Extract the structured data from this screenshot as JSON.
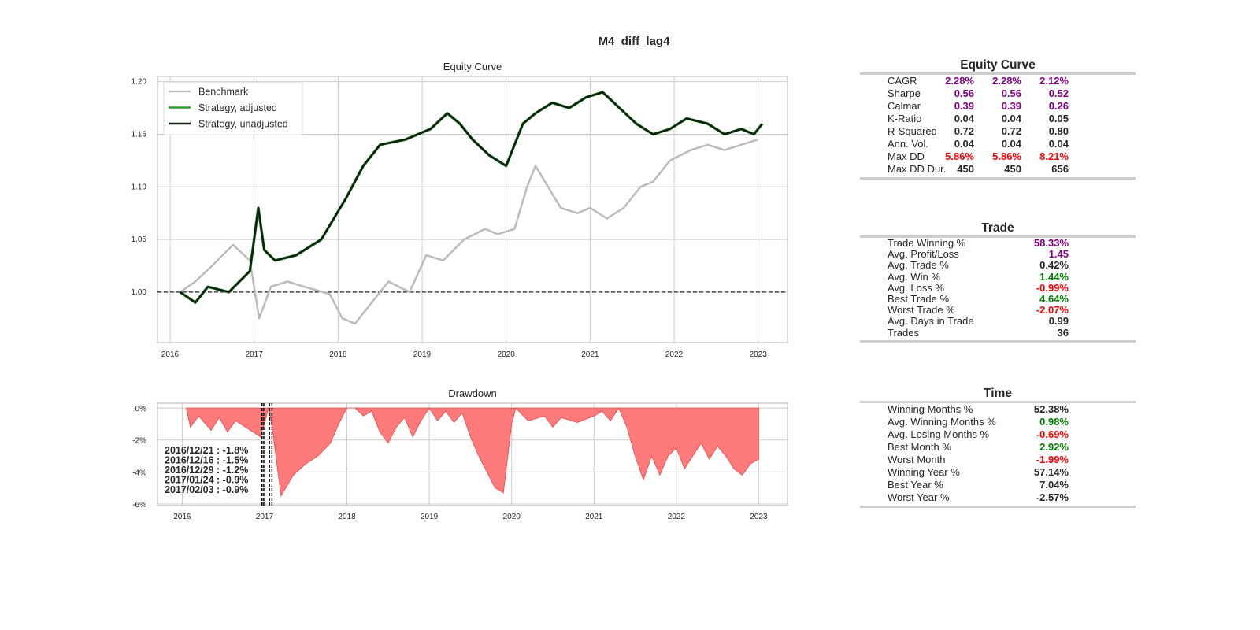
{
  "figure_title": "M4_diff_lag4",
  "colors": {
    "benchmark": "#bbbbbb",
    "strategy_adjusted": "#2ca02c",
    "strategy_unadjusted": "#0f1f0f",
    "drawdown_fill": "#ff7a7a",
    "drawdown_line": "#ee4444",
    "positive": "#008000",
    "negative": "#ff0000",
    "highlight": "#800080",
    "neutral": "#262626"
  },
  "chart_data": [
    {
      "type": "line",
      "title": "Equity Curve",
      "xlabel": "",
      "ylabel": "",
      "x_ticks": [
        "2016",
        "2017",
        "2018",
        "2019",
        "2020",
        "2021",
        "2022",
        "2023"
      ],
      "y_ticks": [
        "1.00",
        "1.05",
        "1.10",
        "1.15",
        "1.20"
      ],
      "xlim": [
        2015.85,
        2023.35
      ],
      "ylim": [
        0.952,
        1.205
      ],
      "grid": true,
      "legend_position": "top-left",
      "reference_line": 1.0,
      "series": [
        {
          "name": "Benchmark",
          "x": [
            2016.12,
            2016.3,
            2016.5,
            2016.75,
            2016.95,
            2017.06,
            2017.2,
            2017.4,
            2017.6,
            2017.9,
            2018.05,
            2018.2,
            2018.4,
            2018.6,
            2018.85,
            2019.05,
            2019.25,
            2019.5,
            2019.75,
            2019.9,
            2020.1,
            2020.25,
            2020.35,
            2020.5,
            2020.65,
            2020.85,
            2021.0,
            2021.2,
            2021.4,
            2021.6,
            2021.75,
            2021.95,
            2022.2,
            2022.4,
            2022.6,
            2022.8,
            2023.0
          ],
          "y": [
            1.0,
            1.01,
            1.025,
            1.045,
            1.03,
            0.975,
            1.005,
            1.01,
            1.005,
            0.998,
            0.975,
            0.97,
            0.99,
            1.01,
            1.0,
            1.035,
            1.03,
            1.05,
            1.06,
            1.055,
            1.06,
            1.1,
            1.12,
            1.1,
            1.08,
            1.075,
            1.08,
            1.07,
            1.08,
            1.1,
            1.105,
            1.125,
            1.135,
            1.14,
            1.135,
            1.14,
            1.145
          ]
        },
        {
          "name": "Strategy, adjusted",
          "x": [
            2016.12,
            2016.3,
            2016.45,
            2016.7,
            2016.95,
            2017.05,
            2017.12,
            2017.25,
            2017.5,
            2017.8,
            2018.1,
            2018.3,
            2018.5,
            2018.8,
            2019.1,
            2019.3,
            2019.45,
            2019.6,
            2019.8,
            2020.0,
            2020.2,
            2020.35,
            2020.55,
            2020.75,
            2020.95,
            2021.15,
            2021.35,
            2021.55,
            2021.75,
            2021.95,
            2022.15,
            2022.4,
            2022.6,
            2022.8,
            2022.95,
            2023.05
          ],
          "y": [
            1.0,
            0.99,
            1.005,
            1.0,
            1.02,
            1.08,
            1.04,
            1.03,
            1.035,
            1.05,
            1.09,
            1.12,
            1.14,
            1.145,
            1.155,
            1.17,
            1.16,
            1.145,
            1.13,
            1.12,
            1.16,
            1.17,
            1.18,
            1.175,
            1.185,
            1.19,
            1.175,
            1.16,
            1.15,
            1.155,
            1.165,
            1.16,
            1.15,
            1.155,
            1.15,
            1.16
          ]
        },
        {
          "name": "Strategy, unadjusted",
          "x": [
            2016.12,
            2016.3,
            2016.45,
            2016.7,
            2016.95,
            2017.05,
            2017.12,
            2017.25,
            2017.5,
            2017.8,
            2018.1,
            2018.3,
            2018.5,
            2018.8,
            2019.1,
            2019.3,
            2019.45,
            2019.6,
            2019.8,
            2020.0,
            2020.2,
            2020.35,
            2020.55,
            2020.75,
            2020.95,
            2021.15,
            2021.35,
            2021.55,
            2021.75,
            2021.95,
            2022.15,
            2022.4,
            2022.6,
            2022.8,
            2022.95,
            2023.05
          ],
          "y": [
            1.0,
            0.99,
            1.005,
            1.0,
            1.02,
            1.08,
            1.04,
            1.03,
            1.035,
            1.05,
            1.09,
            1.12,
            1.14,
            1.145,
            1.155,
            1.17,
            1.16,
            1.145,
            1.13,
            1.12,
            1.16,
            1.17,
            1.18,
            1.175,
            1.185,
            1.19,
            1.175,
            1.16,
            1.15,
            1.155,
            1.165,
            1.16,
            1.15,
            1.155,
            1.15,
            1.16
          ]
        }
      ]
    },
    {
      "type": "area",
      "title": "Drawdown",
      "xlabel": "",
      "ylabel": "",
      "x_ticks": [
        "2016",
        "2017",
        "2018",
        "2019",
        "2020",
        "2021",
        "2022",
        "2023"
      ],
      "y_ticks": [
        "0%",
        "-2%",
        "-4%",
        "-6%"
      ],
      "xlim": [
        2015.7,
        2023.35
      ],
      "ylim": [
        -6.1,
        0.3
      ],
      "grid": true,
      "series": [
        {
          "name": "Drawdown",
          "x": [
            2016.05,
            2016.1,
            2016.2,
            2016.35,
            2016.45,
            2016.55,
            2016.65,
            2016.8,
            2016.95,
            2017.05,
            2017.1,
            2017.2,
            2017.35,
            2017.5,
            2017.65,
            2017.8,
            2017.9,
            2018.0,
            2018.1,
            2018.2,
            2018.3,
            2018.4,
            2018.5,
            2018.6,
            2018.7,
            2018.8,
            2018.9,
            2019.0,
            2019.1,
            2019.2,
            2019.3,
            2019.4,
            2019.5,
            2019.6,
            2019.7,
            2019.8,
            2019.9,
            2020.0,
            2020.05,
            2020.2,
            2020.4,
            2020.5,
            2020.6,
            2020.8,
            2021.0,
            2021.1,
            2021.2,
            2021.3,
            2021.4,
            2021.5,
            2021.6,
            2021.7,
            2021.8,
            2021.9,
            2022.0,
            2022.1,
            2022.2,
            2022.3,
            2022.4,
            2022.5,
            2022.6,
            2022.7,
            2022.8,
            2022.9,
            2023.0
          ],
          "y": [
            0,
            -1.2,
            -0.5,
            -1.4,
            -0.6,
            -1.5,
            -0.8,
            -1.3,
            -1.8,
            0,
            -1.5,
            -5.5,
            -4.2,
            -3.5,
            -3.0,
            -2.2,
            -1.0,
            0,
            0,
            -0.5,
            -0.2,
            -1.5,
            -2.2,
            -1.2,
            -0.6,
            -1.8,
            -0.8,
            0,
            -0.8,
            -0.2,
            -0.9,
            -0.3,
            -1.8,
            -3.0,
            -4.0,
            -5.0,
            -5.3,
            -1.0,
            0,
            -0.8,
            -0.5,
            -1.2,
            -0.6,
            -0.9,
            -0.5,
            -0.2,
            -0.8,
            0,
            -1.2,
            -3.0,
            -4.5,
            -3.0,
            -4.2,
            -3.0,
            -2.5,
            -3.8,
            -3.0,
            -2.2,
            -3.2,
            -2.4,
            -3.0,
            -3.8,
            -4.2,
            -3.5,
            -3.2
          ]
        }
      ],
      "worst_drawdowns": [
        {
          "label": "2016/12/21 : -1.8%",
          "x": 2016.97
        },
        {
          "label": "2016/12/16 : -1.5%",
          "x": 2016.96
        },
        {
          "label": "2016/12/29 : -1.2%",
          "x": 2016.99
        },
        {
          "label": "2017/01/24 : -0.9%",
          "x": 2017.06
        },
        {
          "label": "2017/02/03 : -0.9%",
          "x": 2017.09
        }
      ]
    }
  ],
  "tables": {
    "equity": {
      "title": "Equity Curve",
      "rows": [
        {
          "label": "CAGR",
          "values": [
            "2.28%",
            "2.28%",
            "2.12%"
          ],
          "color": "highlight"
        },
        {
          "label": "Sharpe",
          "values": [
            "0.56",
            "0.56",
            "0.52"
          ],
          "color": "highlight"
        },
        {
          "label": "Calmar",
          "values": [
            "0.39",
            "0.39",
            "0.26"
          ],
          "color": "highlight"
        },
        {
          "label": "K-Ratio",
          "values": [
            "0.04",
            "0.04",
            "0.05"
          ],
          "color": "neutral"
        },
        {
          "label": "R-Squared",
          "values": [
            "0.72",
            "0.72",
            "0.80"
          ],
          "color": "neutral"
        },
        {
          "label": "Ann. Vol.",
          "values": [
            "0.04",
            "0.04",
            "0.04"
          ],
          "color": "neutral"
        },
        {
          "label": "Max DD",
          "values": [
            "5.86%",
            "5.86%",
            "8.21%"
          ],
          "color": "negative"
        },
        {
          "label": "Max DD Dur.",
          "values": [
            "450",
            "450",
            "656"
          ],
          "color": "neutral"
        }
      ]
    },
    "trade": {
      "title": "Trade",
      "rows": [
        {
          "label": "Trade Winning %",
          "value": "58.33%",
          "color": "highlight"
        },
        {
          "label": "Avg. Profit/Loss",
          "value": "1.45",
          "color": "highlight"
        },
        {
          "label": "Avg. Trade %",
          "value": "0.42%",
          "color": "neutral"
        },
        {
          "label": "Avg. Win %",
          "value": "1.44%",
          "color": "positive"
        },
        {
          "label": "Avg. Loss %",
          "value": "-0.99%",
          "color": "negative"
        },
        {
          "label": "Best Trade %",
          "value": "4.64%",
          "color": "positive"
        },
        {
          "label": "Worst Trade %",
          "value": "-2.07%",
          "color": "negative"
        },
        {
          "label": "Avg. Days in Trade",
          "value": "0.99",
          "color": "neutral"
        },
        {
          "label": "Trades",
          "value": "36",
          "color": "neutral"
        }
      ]
    },
    "time": {
      "title": "Time",
      "rows": [
        {
          "label": "Winning Months %",
          "value": "52.38%",
          "color": "neutral"
        },
        {
          "label": "Avg. Winning Months %",
          "value": "0.98%",
          "color": "positive"
        },
        {
          "label": "Avg. Losing Months %",
          "value": "-0.69%",
          "color": "negative"
        },
        {
          "label": "Best Month %",
          "value": "2.92%",
          "color": "positive"
        },
        {
          "label": "Worst Month",
          "value": "-1.99%",
          "color": "negative"
        },
        {
          "label": "Winning Year %",
          "value": "57.14%",
          "color": "neutral"
        },
        {
          "label": "Best Year %",
          "value": "7.04%",
          "color": "neutral"
        },
        {
          "label": "Worst Year %",
          "value": "-2.57%",
          "color": "neutral"
        }
      ]
    }
  }
}
